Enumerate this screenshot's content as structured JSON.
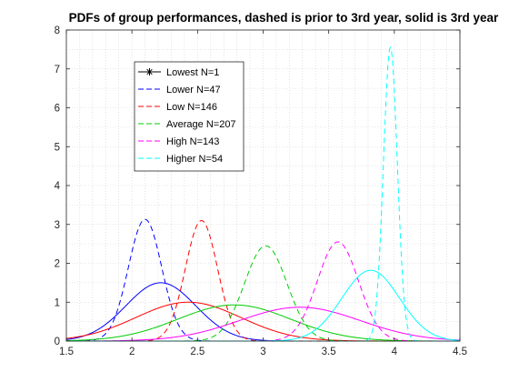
{
  "chart_data": {
    "type": "line",
    "title": "PDFs of group performances, dashed is prior to 3rd year, solid is 3rd year",
    "xlabel": "",
    "ylabel": "",
    "xlim": [
      1.5,
      4.5
    ],
    "ylim": [
      0,
      8
    ],
    "xticks": [
      1.5,
      2,
      2.5,
      3,
      3.5,
      4,
      4.5
    ],
    "xtick_labels": [
      "1.5",
      "2",
      "2.5",
      "3",
      "3.5",
      "4",
      "4.5"
    ],
    "yticks": [
      0,
      1,
      2,
      3,
      4,
      5,
      6,
      7,
      8
    ],
    "ytick_labels": [
      "0",
      "1",
      "2",
      "3",
      "4",
      "5",
      "6",
      "7",
      "8"
    ],
    "grid": true,
    "legend_position": "top-left",
    "series": [
      {
        "name": "Lowest N=1",
        "color": "#000000",
        "marker": "asterisk",
        "style": "solid",
        "points": []
      },
      {
        "name": "Lower N=47",
        "color": "#0000ff",
        "dashed": {
          "mean": 2.1,
          "sd": 0.127,
          "peak": 3.13
        },
        "solid": {
          "mean": 2.22,
          "sd": 0.266,
          "peak": 1.5
        }
      },
      {
        "name": "Low N=146",
        "color": "#ff0000",
        "dashed": {
          "mean": 2.53,
          "sd": 0.122,
          "peak": 3.1
        },
        "solid": {
          "mean": 2.43,
          "sd": 0.4,
          "peak": 1.0
        }
      },
      {
        "name": "Average N=207",
        "color": "#00cc00",
        "dashed": {
          "mean": 3.02,
          "sd": 0.162,
          "peak": 2.45
        },
        "solid": {
          "mean": 2.78,
          "sd": 0.43,
          "peak": 0.93
        }
      },
      {
        "name": "High N=143",
        "color": "#ff00ff",
        "dashed": {
          "mean": 3.57,
          "sd": 0.157,
          "peak": 2.55
        },
        "solid": {
          "mean": 3.28,
          "sd": 0.46,
          "peak": 0.87
        }
      },
      {
        "name": "Higher N=54",
        "color": "#00ffff",
        "dashed": {
          "mean": 3.97,
          "sd": 0.053,
          "peak": 7.55
        },
        "solid": {
          "mean": 3.82,
          "sd": 0.22,
          "peak": 1.82
        }
      }
    ]
  }
}
